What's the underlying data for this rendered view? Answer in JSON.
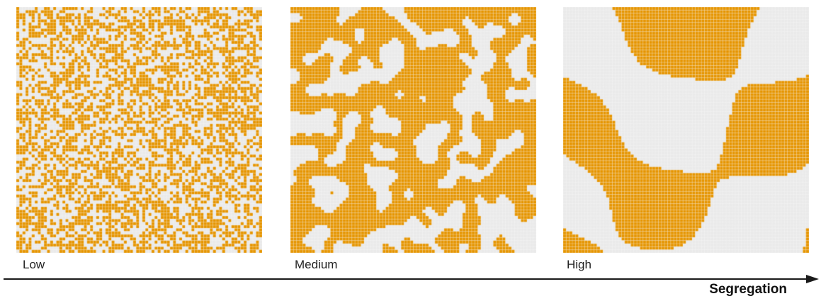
{
  "colors": {
    "filled": "#e69500",
    "empty": "#eaeaea",
    "gridline": "#ffffff",
    "axis": "#1a1a1a"
  },
  "grid_cells": 80,
  "panels": [
    {
      "label": "Low",
      "segregation": "low"
    },
    {
      "label": "Medium",
      "segregation": "medium"
    },
    {
      "label": "High",
      "segregation": "high"
    }
  ],
  "axis": {
    "title": "Segregation"
  }
}
